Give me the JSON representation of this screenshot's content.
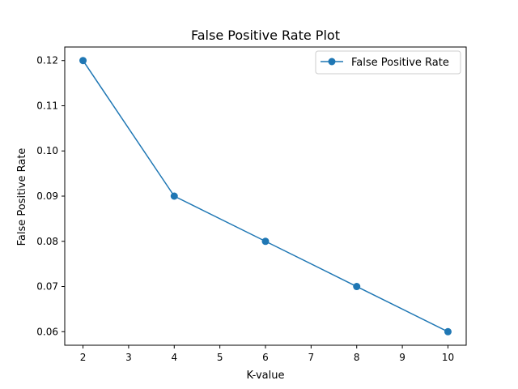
{
  "chart_data": {
    "type": "line",
    "title": "False Positive Rate Plot",
    "xlabel": "K-value",
    "ylabel": "False Positive Rate",
    "xlim": [
      1.6,
      10.4
    ],
    "ylim": [
      0.057,
      0.123
    ],
    "xticks": [
      2,
      3,
      4,
      5,
      6,
      7,
      8,
      9,
      10
    ],
    "yticks": [
      0.06,
      0.07,
      0.08,
      0.09,
      0.1,
      0.11,
      0.12
    ],
    "ytick_labels": [
      "0.06",
      "0.07",
      "0.08",
      "0.09",
      "0.10",
      "0.11",
      "0.12"
    ],
    "grid": false,
    "legend_position": "upper right",
    "series": [
      {
        "name": "False Positive Rate",
        "color": "#1f77b4",
        "marker": "circle",
        "x": [
          2,
          4,
          6,
          8,
          10
        ],
        "y": [
          0.12,
          0.09,
          0.08,
          0.07,
          0.06
        ]
      }
    ]
  }
}
